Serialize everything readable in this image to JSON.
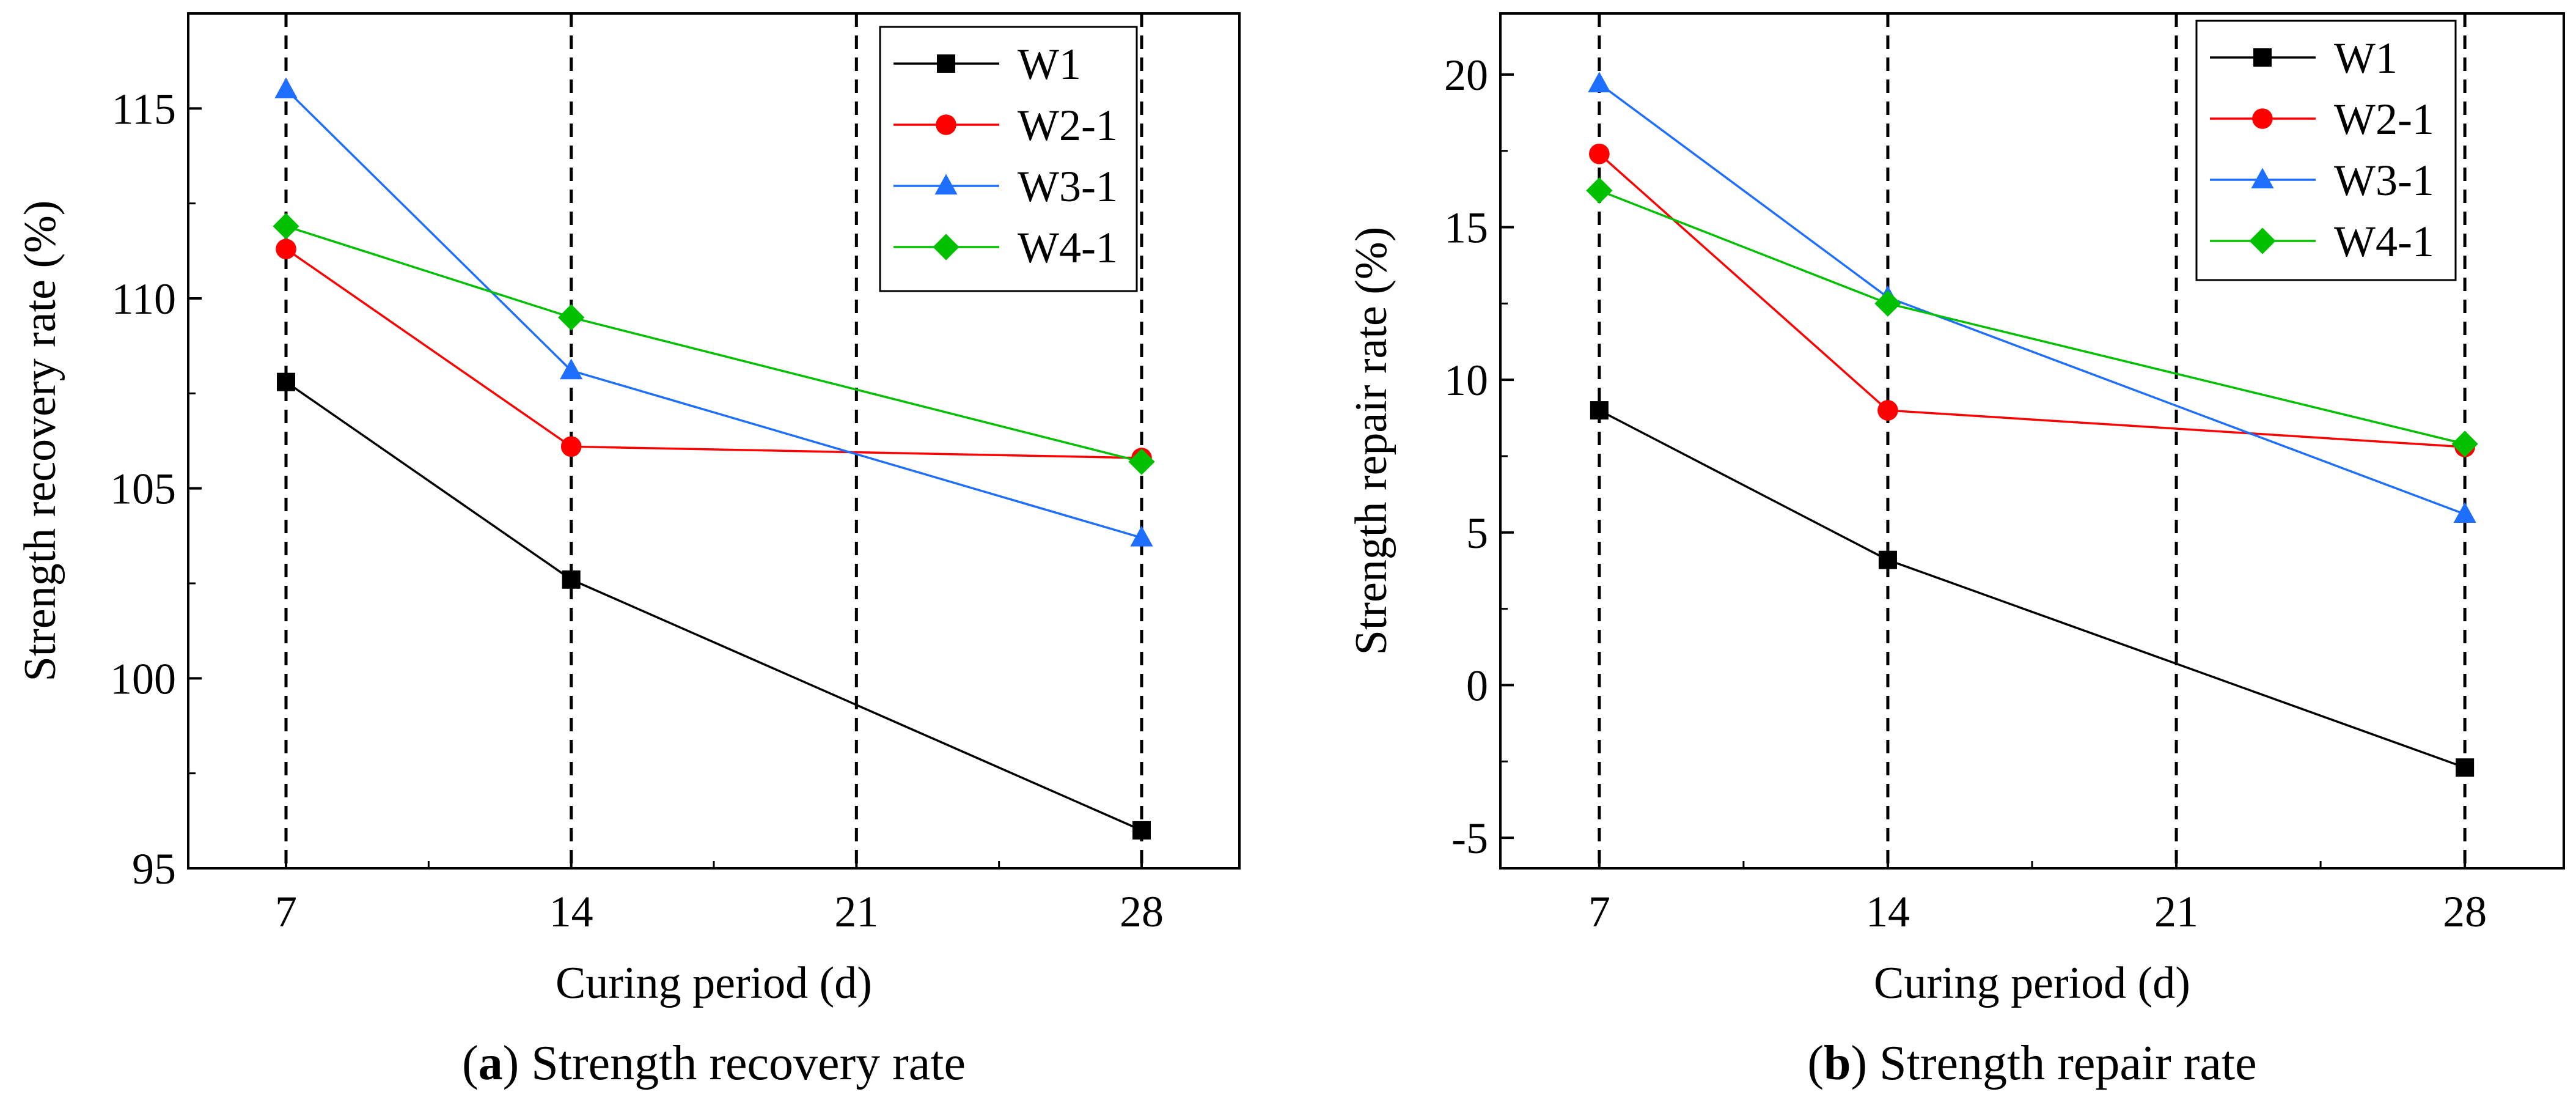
{
  "chart_data": [
    {
      "type": "line",
      "caption_letter": "a",
      "caption_text": ") Strength recovery rate",
      "xlabel": "Curing period (d)",
      "ylabel": "Strength recovery rate (%)",
      "x": [
        7,
        14,
        21,
        28
      ],
      "xlim": [
        4.6,
        30.4
      ],
      "ylim": [
        95,
        117.5
      ],
      "yticks": [
        95,
        100,
        105,
        110,
        115
      ],
      "xticks": [
        7,
        14,
        21,
        28
      ],
      "vlines": [
        7,
        14,
        21,
        28
      ],
      "legend_position": "top-right",
      "series": [
        {
          "name": "W1",
          "color": "#000000",
          "marker": "square",
          "x": [
            7,
            14,
            28
          ],
          "y": [
            107.8,
            102.6,
            96.0
          ]
        },
        {
          "name": "W2-1",
          "color": "#ff0000",
          "marker": "circle",
          "x": [
            7,
            14,
            28
          ],
          "y": [
            111.3,
            106.1,
            105.8
          ]
        },
        {
          "name": "W3-1",
          "color": "#1e6fff",
          "marker": "triangle",
          "x": [
            7,
            14,
            28
          ],
          "y": [
            115.5,
            108.1,
            103.7
          ]
        },
        {
          "name": "W4-1",
          "color": "#00c000",
          "marker": "diamond",
          "x": [
            7,
            14,
            28
          ],
          "y": [
            111.9,
            109.5,
            105.7
          ]
        }
      ]
    },
    {
      "type": "line",
      "caption_letter": "b",
      "caption_text": ") Strength repair rate",
      "xlabel": "Curing period (d)",
      "ylabel": "Strength repair rate (%)",
      "x": [
        7,
        14,
        21,
        28
      ],
      "xlim": [
        4.6,
        30.4
      ],
      "ylim": [
        -6,
        22
      ],
      "yticks": [
        -5,
        0,
        5,
        10,
        15,
        20
      ],
      "xticks": [
        7,
        14,
        21,
        28
      ],
      "vlines": [
        7,
        14,
        21,
        28
      ],
      "legend_position": "top-right",
      "series": [
        {
          "name": "W1",
          "color": "#000000",
          "marker": "square",
          "x": [
            7,
            14,
            28
          ],
          "y": [
            9.0,
            4.1,
            -2.7
          ]
        },
        {
          "name": "W2-1",
          "color": "#ff0000",
          "marker": "circle",
          "x": [
            7,
            14,
            28
          ],
          "y": [
            17.4,
            9.0,
            7.8
          ]
        },
        {
          "name": "W3-1",
          "color": "#1e6fff",
          "marker": "triangle",
          "x": [
            7,
            14,
            28
          ],
          "y": [
            19.7,
            12.7,
            5.6
          ]
        },
        {
          "name": "W4-1",
          "color": "#00c000",
          "marker": "diamond",
          "x": [
            7,
            14,
            28
          ],
          "y": [
            16.2,
            12.5,
            7.9
          ]
        }
      ]
    }
  ]
}
